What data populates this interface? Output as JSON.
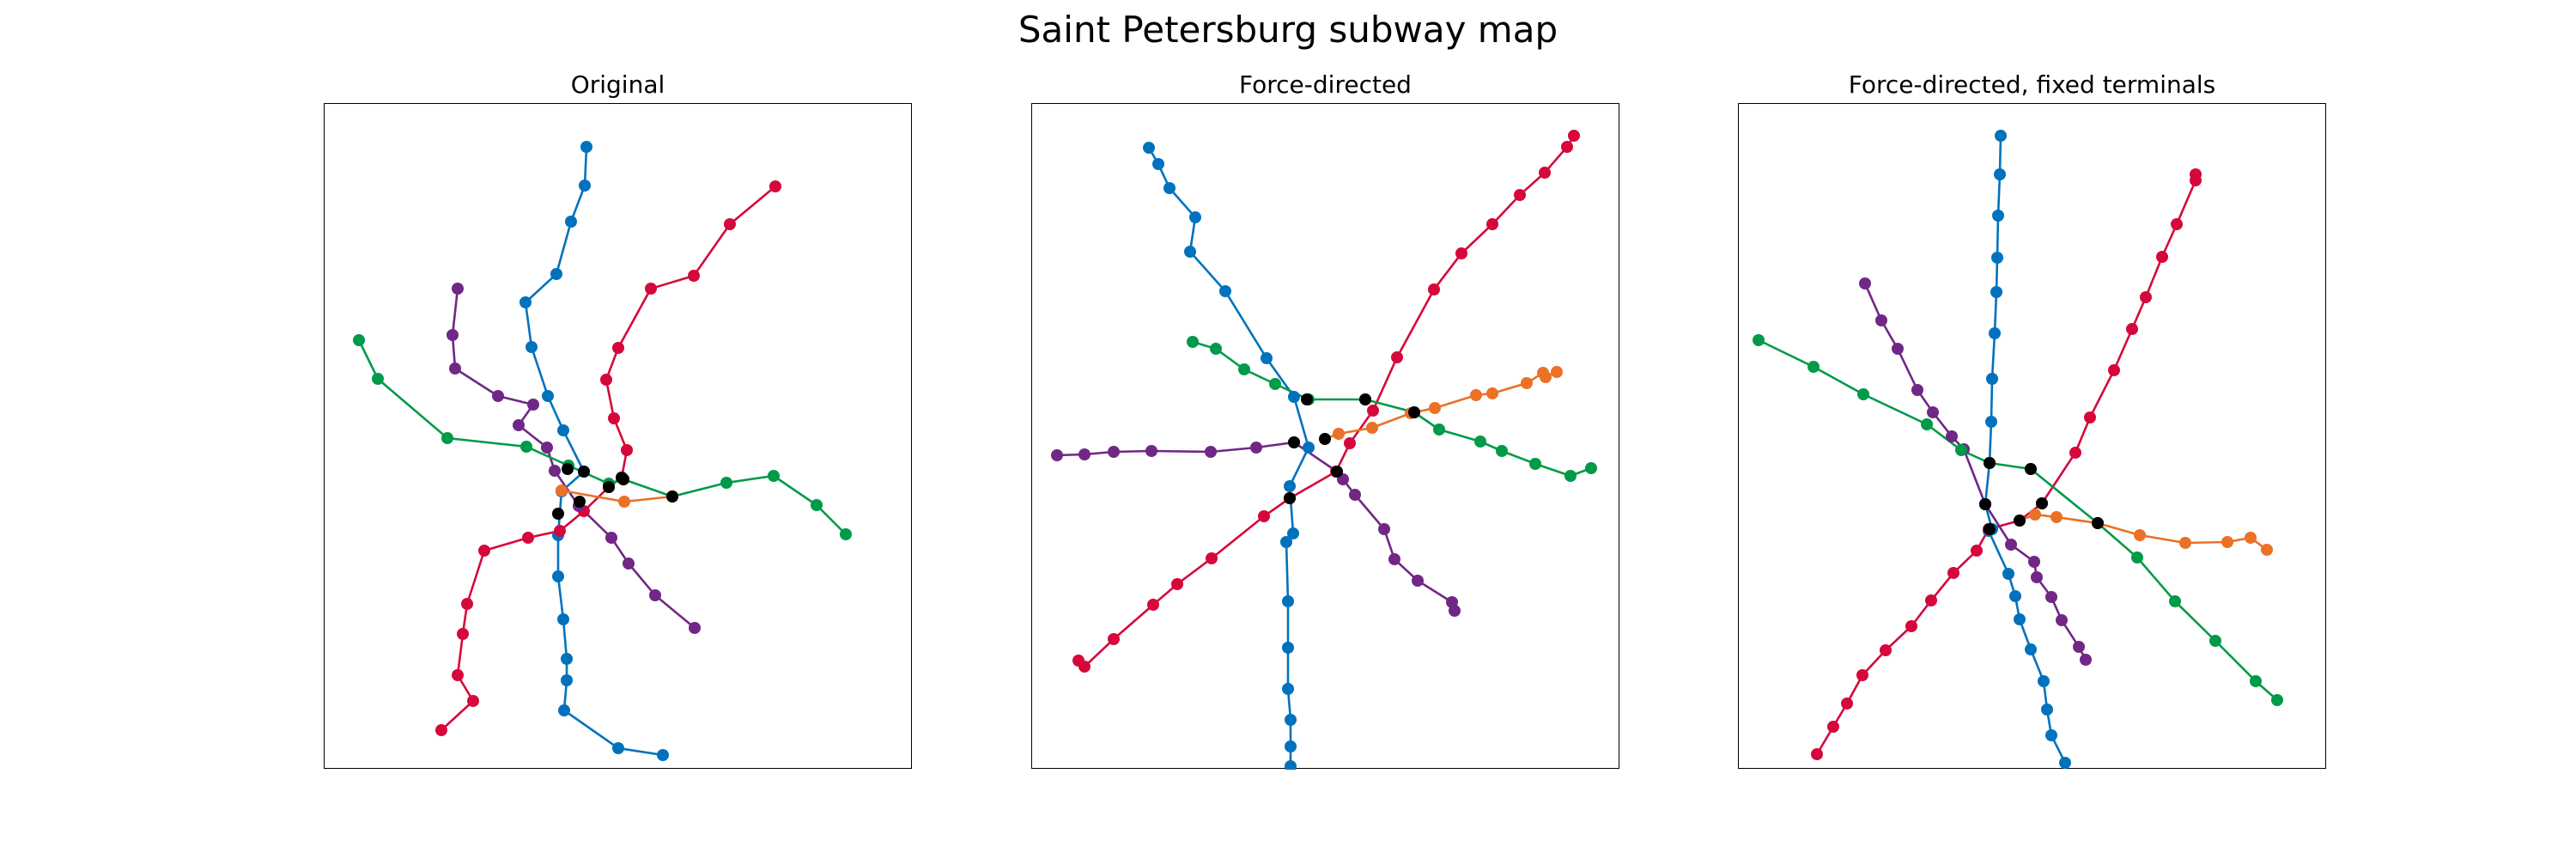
{
  "title": "Saint Petersburg subway map",
  "panels": [
    {
      "title": "Original"
    },
    {
      "title": "Force-directed"
    },
    {
      "title": "Force-directed, fixed terminals"
    }
  ],
  "colors": {
    "blue": "#0072bd",
    "red": "#d6083b",
    "purple": "#702785",
    "green": "#009a49",
    "orange": "#ea7125",
    "transfer": "#000000"
  },
  "node_size": 7
}
